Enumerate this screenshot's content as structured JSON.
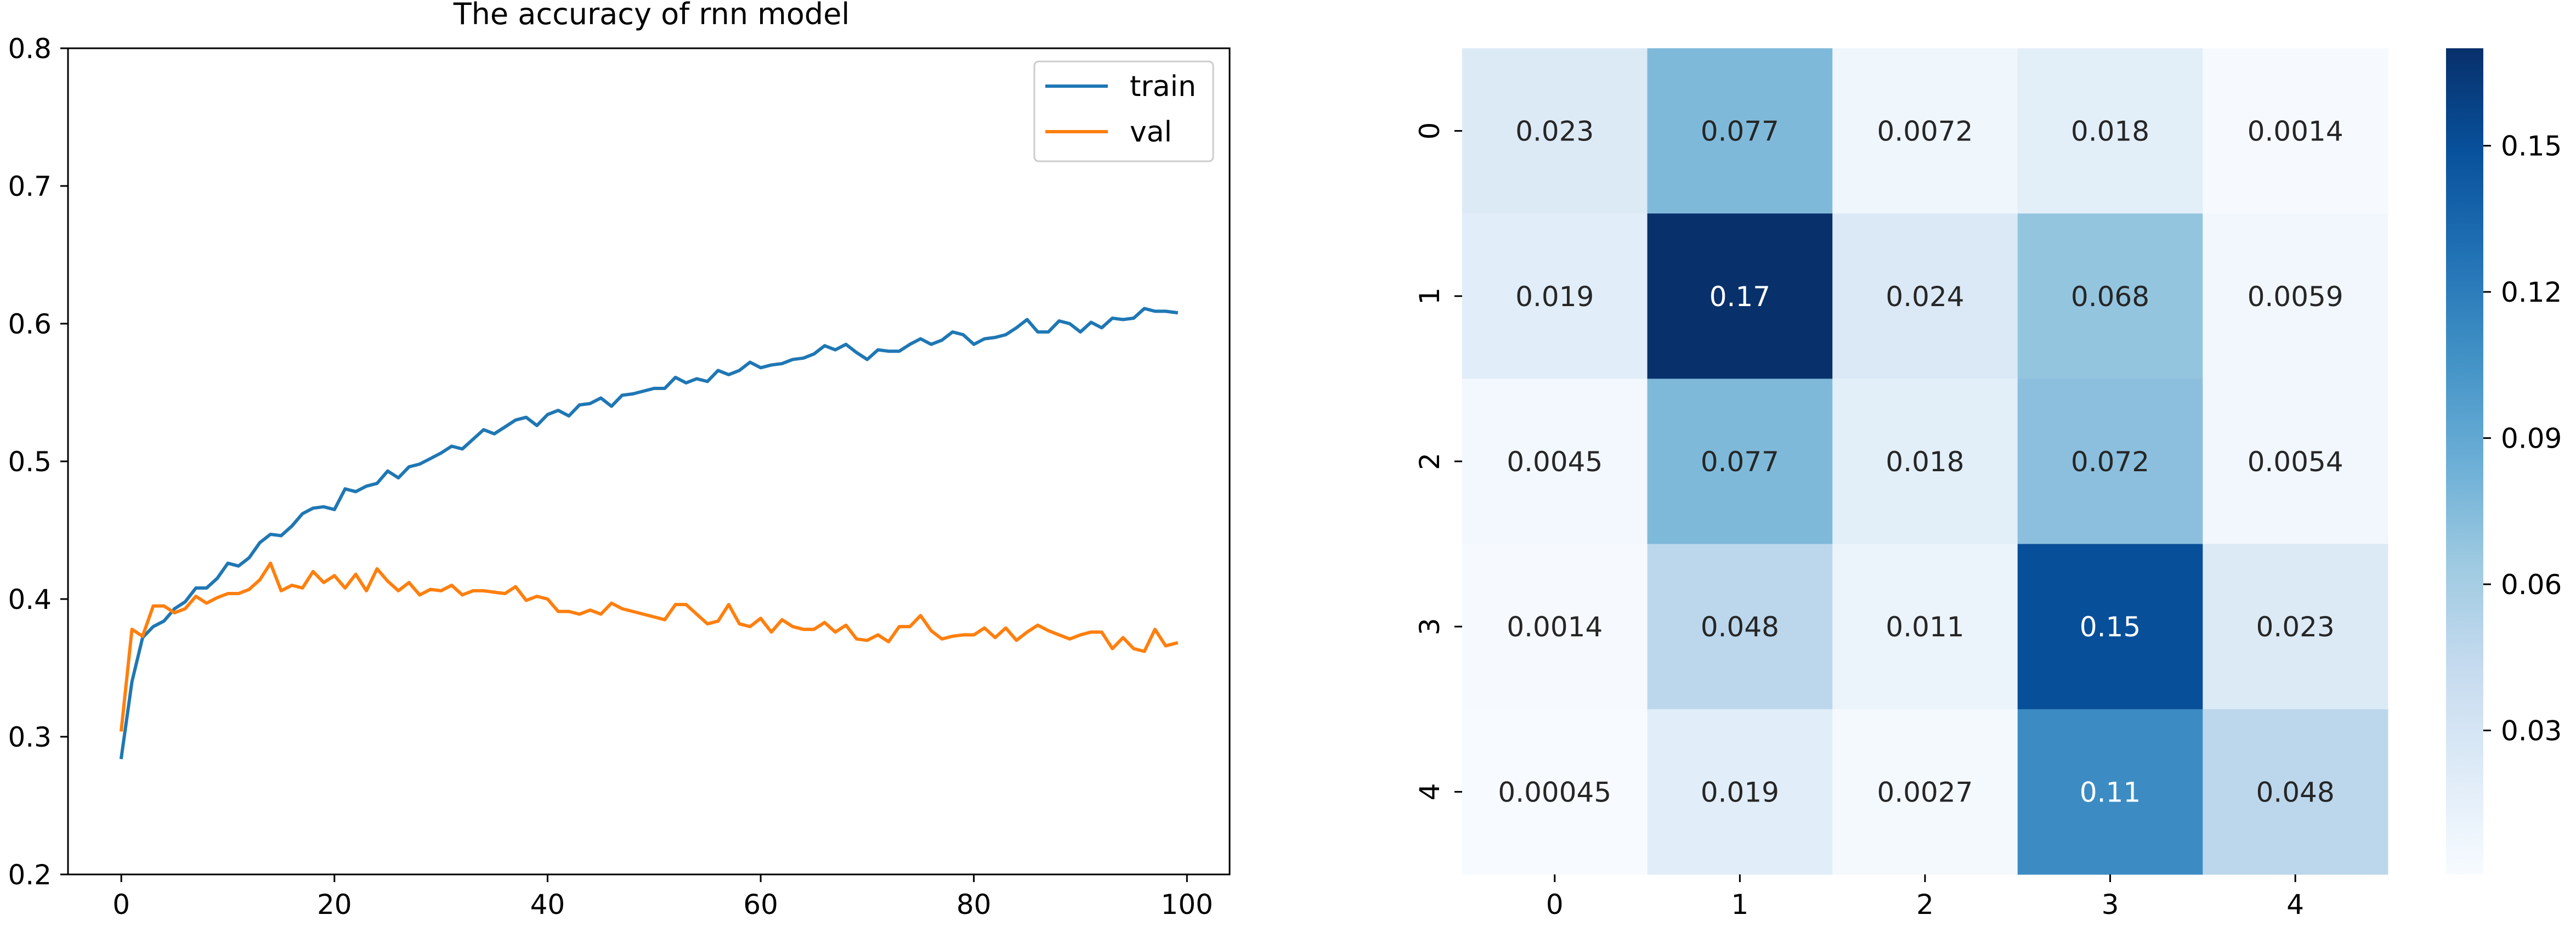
{
  "chart_data": [
    {
      "type": "line",
      "title": "The accuracy of rnn model",
      "xlabel": "",
      "ylabel": "",
      "xlim": [
        -5,
        104
      ],
      "ylim": [
        0.2,
        0.8
      ],
      "xticks": [
        0,
        20,
        40,
        60,
        80,
        100
      ],
      "yticks": [
        0.2,
        0.3,
        0.4,
        0.5,
        0.6,
        0.7,
        0.8
      ],
      "legend_position": "top-right",
      "grid": false,
      "series": [
        {
          "name": "train",
          "color": "#1f77b4",
          "x": [
            0,
            1,
            2,
            3,
            4,
            5,
            6,
            7,
            8,
            9,
            10,
            11,
            12,
            13,
            14,
            15,
            16,
            17,
            18,
            19,
            20,
            21,
            22,
            23,
            24,
            25,
            26,
            27,
            28,
            29,
            30,
            31,
            32,
            33,
            34,
            35,
            36,
            37,
            38,
            39,
            40,
            41,
            42,
            43,
            44,
            45,
            46,
            47,
            48,
            49,
            50,
            51,
            52,
            53,
            54,
            55,
            56,
            57,
            58,
            59,
            60,
            61,
            62,
            63,
            64,
            65,
            66,
            67,
            68,
            69,
            70,
            71,
            72,
            73,
            74,
            75,
            76,
            77,
            78,
            79,
            80,
            81,
            82,
            83,
            84,
            85,
            86,
            87,
            88,
            89,
            90,
            91,
            92,
            93,
            94,
            95,
            96,
            97,
            98,
            99
          ],
          "values": [
            0.285,
            0.34,
            0.372,
            0.38,
            0.384,
            0.393,
            0.398,
            0.408,
            0.408,
            0.415,
            0.426,
            0.424,
            0.43,
            0.441,
            0.447,
            0.446,
            0.453,
            0.462,
            0.466,
            0.467,
            0.465,
            0.48,
            0.478,
            0.482,
            0.484,
            0.493,
            0.488,
            0.496,
            0.498,
            0.502,
            0.506,
            0.511,
            0.509,
            0.516,
            0.523,
            0.52,
            0.525,
            0.53,
            0.532,
            0.526,
            0.534,
            0.537,
            0.533,
            0.541,
            0.542,
            0.546,
            0.54,
            0.548,
            0.549,
            0.551,
            0.553,
            0.553,
            0.561,
            0.557,
            0.56,
            0.558,
            0.566,
            0.563,
            0.566,
            0.572,
            0.568,
            0.57,
            0.571,
            0.574,
            0.575,
            0.578,
            0.584,
            0.581,
            0.585,
            0.579,
            0.574,
            0.581,
            0.58,
            0.58,
            0.585,
            0.589,
            0.585,
            0.588,
            0.594,
            0.592,
            0.585,
            0.589,
            0.59,
            0.592,
            0.597,
            0.603,
            0.594,
            0.594,
            0.602,
            0.6,
            0.594,
            0.601,
            0.597,
            0.604,
            0.603,
            0.604,
            0.611,
            0.609,
            0.609,
            0.608
          ]
        },
        {
          "name": "val",
          "color": "#ff7f0e",
          "x": [
            0,
            1,
            2,
            3,
            4,
            5,
            6,
            7,
            8,
            9,
            10,
            11,
            12,
            13,
            14,
            15,
            16,
            17,
            18,
            19,
            20,
            21,
            22,
            23,
            24,
            25,
            26,
            27,
            28,
            29,
            30,
            31,
            32,
            33,
            34,
            35,
            36,
            37,
            38,
            39,
            40,
            41,
            42,
            43,
            44,
            45,
            46,
            47,
            48,
            49,
            50,
            51,
            52,
            53,
            54,
            55,
            56,
            57,
            58,
            59,
            60,
            61,
            62,
            63,
            64,
            65,
            66,
            67,
            68,
            69,
            70,
            71,
            72,
            73,
            74,
            75,
            76,
            77,
            78,
            79,
            80,
            81,
            82,
            83,
            84,
            85,
            86,
            87,
            88,
            89,
            90,
            91,
            92,
            93,
            94,
            95,
            96,
            97,
            98,
            99
          ],
          "values": [
            0.305,
            0.378,
            0.373,
            0.395,
            0.395,
            0.39,
            0.393,
            0.402,
            0.397,
            0.401,
            0.404,
            0.404,
            0.407,
            0.414,
            0.426,
            0.406,
            0.41,
            0.408,
            0.42,
            0.412,
            0.417,
            0.408,
            0.418,
            0.406,
            0.422,
            0.413,
            0.406,
            0.412,
            0.403,
            0.407,
            0.406,
            0.41,
            0.403,
            0.406,
            0.406,
            0.405,
            0.404,
            0.409,
            0.399,
            0.402,
            0.4,
            0.391,
            0.391,
            0.389,
            0.392,
            0.389,
            0.397,
            0.393,
            0.391,
            0.389,
            0.387,
            0.385,
            0.396,
            0.396,
            0.389,
            0.382,
            0.384,
            0.396,
            0.382,
            0.38,
            0.386,
            0.376,
            0.385,
            0.38,
            0.378,
            0.378,
            0.383,
            0.376,
            0.381,
            0.371,
            0.37,
            0.374,
            0.369,
            0.38,
            0.38,
            0.388,
            0.377,
            0.371,
            0.373,
            0.374,
            0.374,
            0.379,
            0.372,
            0.379,
            0.37,
            0.376,
            0.381,
            0.377,
            0.374,
            0.371,
            0.374,
            0.376,
            0.376,
            0.364,
            0.372,
            0.364,
            0.362,
            0.378,
            0.366,
            0.368
          ]
        }
      ]
    },
    {
      "type": "heatmap",
      "title": "",
      "xlabel": "",
      "ylabel": "",
      "x_categories": [
        "0",
        "1",
        "2",
        "3",
        "4"
      ],
      "y_categories": [
        "0",
        "1",
        "2",
        "3",
        "4"
      ],
      "labels": [
        [
          "0.023",
          "0.077",
          "0.0072",
          "0.018",
          "0.0014"
        ],
        [
          "0.019",
          "0.17",
          "0.024",
          "0.068",
          "0.0059"
        ],
        [
          "0.0045",
          "0.077",
          "0.018",
          "0.072",
          "0.0054"
        ],
        [
          "0.0014",
          "0.048",
          "0.011",
          "0.15",
          "0.023"
        ],
        [
          "0.00045",
          "0.019",
          "0.0027",
          "0.11",
          "0.048"
        ]
      ],
      "values": [
        [
          0.023,
          0.077,
          0.0072,
          0.018,
          0.0014
        ],
        [
          0.019,
          0.17,
          0.024,
          0.068,
          0.0059
        ],
        [
          0.0045,
          0.077,
          0.018,
          0.072,
          0.0054
        ],
        [
          0.0014,
          0.048,
          0.011,
          0.15,
          0.023
        ],
        [
          0.00045,
          0.019,
          0.0027,
          0.11,
          0.048
        ]
      ],
      "colormap": "Blues",
      "color_range": [
        0.00045,
        0.17
      ],
      "colorbar_ticks": [
        "0.03",
        "0.06",
        "0.09",
        "0.12",
        "0.15"
      ],
      "colorbar_tick_values": [
        0.03,
        0.06,
        0.09,
        0.12,
        0.15
      ]
    }
  ]
}
